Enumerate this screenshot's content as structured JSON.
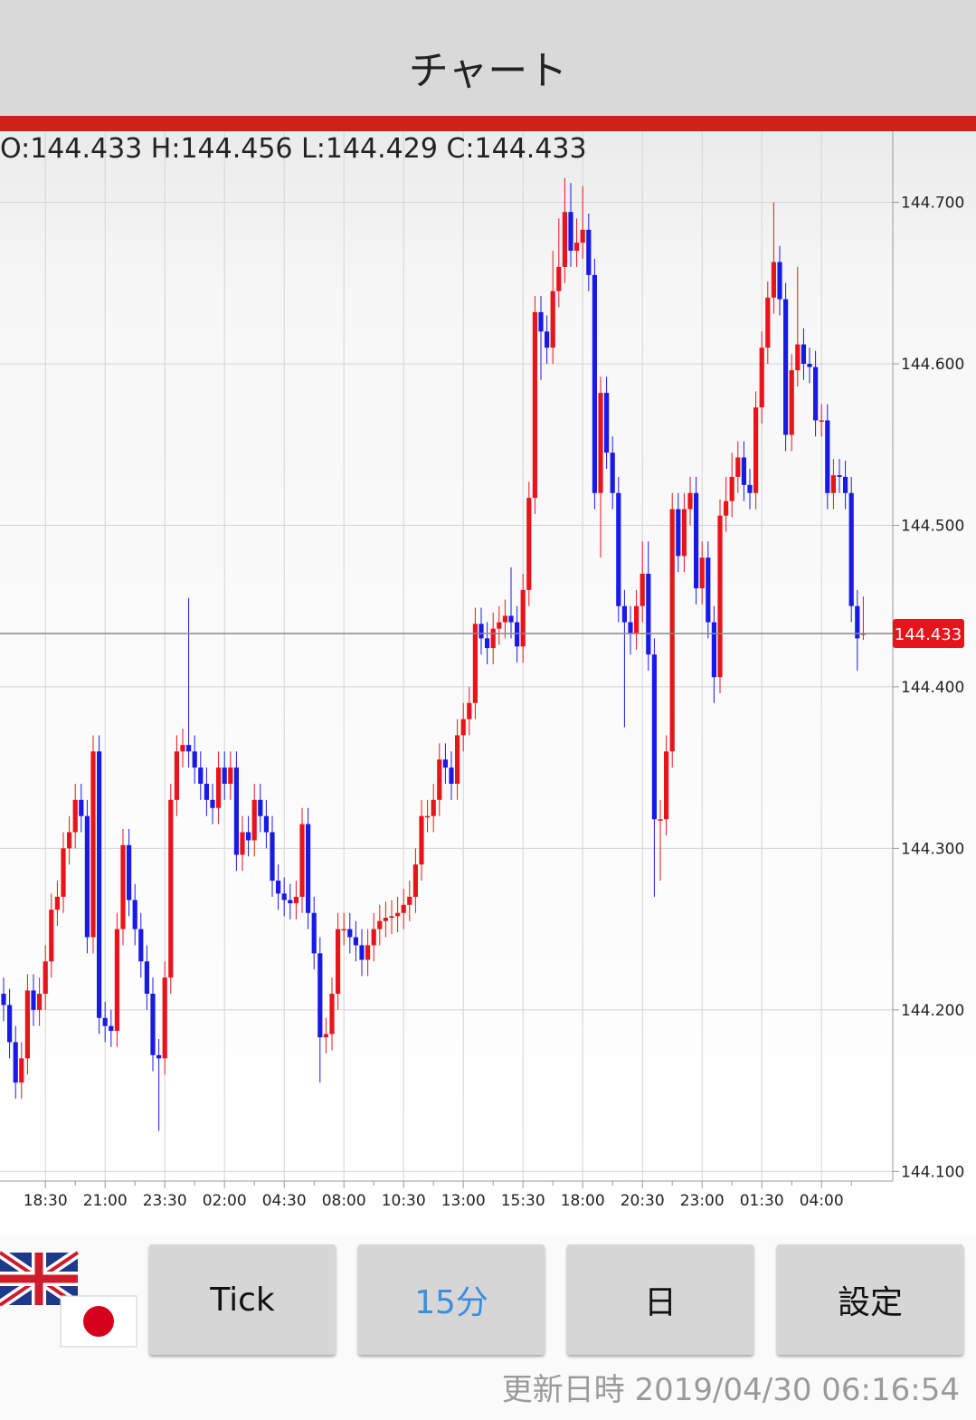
{
  "header": {
    "title": "チャート"
  },
  "chart_data": {
    "type": "candlestick",
    "ohlc_label": "O:144.433 H:144.456 L:144.429 C:144.433",
    "categories": [
      null,
      null,
      null,
      null,
      null,
      null,
      null,
      "18:30",
      null,
      null,
      null,
      null,
      null,
      null,
      null,
      null,
      null,
      "21:00",
      null,
      null,
      null,
      null,
      null,
      null,
      null,
      null,
      null,
      "23:30",
      null,
      null,
      null,
      null,
      null,
      null,
      null,
      null,
      null,
      "02:00",
      null,
      null,
      null,
      null,
      null,
      null,
      null,
      null,
      null,
      "04:30",
      null,
      null,
      null,
      null,
      null,
      null,
      null,
      null,
      null,
      "08:00",
      null,
      null,
      null,
      null,
      null,
      null,
      null,
      null,
      null,
      "10:30",
      null,
      null,
      null,
      null,
      null,
      null,
      null,
      null,
      null,
      "13:00",
      null,
      null,
      null,
      null,
      null,
      null,
      null,
      null,
      null,
      "15:30",
      null,
      null,
      null,
      null,
      null,
      null,
      null,
      null,
      null,
      "18:00",
      null,
      null,
      null,
      null,
      null,
      null,
      null,
      null,
      null,
      "20:30",
      null,
      null,
      null,
      null,
      null,
      null,
      null,
      null,
      null,
      "23:00",
      null,
      null,
      null,
      null,
      null,
      null,
      null,
      null,
      null,
      "01:30",
      null,
      null,
      null,
      null,
      null,
      null,
      null,
      null,
      null,
      "04:00",
      null,
      null,
      null,
      null,
      null,
      null,
      null
    ],
    "open": [
      144.21,
      144.203,
      144.18,
      144.155,
      144.17,
      144.212,
      144.2,
      144.21,
      144.23,
      144.262,
      144.27,
      144.3,
      144.31,
      144.33,
      144.32,
      144.245,
      144.36,
      144.195,
      144.19,
      144.187,
      144.25,
      144.302,
      144.268,
      144.25,
      144.23,
      144.21,
      144.172,
      144.17,
      144.22,
      144.33,
      144.36,
      144.364,
      144.36,
      144.35,
      144.34,
      144.33,
      144.325,
      144.35,
      144.34,
      144.35,
      144.296,
      144.31,
      144.305,
      144.33,
      144.32,
      144.31,
      144.28,
      144.272,
      144.268,
      144.266,
      144.27,
      144.315,
      144.26,
      144.235,
      144.183,
      144.185,
      144.21,
      144.25,
      144.25,
      144.245,
      144.24,
      144.231,
      144.24,
      144.25,
      144.255,
      144.257,
      144.258,
      144.26,
      144.265,
      144.27,
      144.29,
      144.32,
      144.32,
      144.33,
      144.355,
      144.35,
      144.34,
      144.37,
      144.38,
      144.39,
      144.439,
      144.43,
      144.424,
      144.436,
      144.44,
      144.444,
      144.44,
      144.425,
      144.46,
      144.517,
      144.632,
      144.62,
      144.61,
      144.645,
      144.66,
      144.694,
      144.67,
      144.675,
      144.683,
      144.655,
      144.52,
      144.582,
      144.545,
      144.52,
      144.45,
      144.44,
      144.433,
      144.45,
      144.47,
      144.42,
      144.318,
      144.318,
      144.36,
      144.51,
      144.481,
      144.51,
      144.52,
      144.461,
      144.48,
      144.44,
      144.406,
      144.506,
      144.515,
      144.53,
      144.542,
      144.525,
      144.52,
      144.573,
      144.61,
      144.641,
      144.663,
      144.64,
      144.556,
      144.596,
      144.612,
      144.6,
      144.598,
      144.565,
      144.565,
      144.52,
      144.531,
      144.53,
      144.52,
      144.45,
      144.433
    ],
    "high": [
      144.22,
      144.213,
      144.19,
      144.18,
      144.222,
      144.222,
      144.22,
      144.24,
      144.272,
      144.28,
      144.31,
      144.32,
      144.34,
      144.34,
      144.33,
      144.37,
      144.37,
      144.205,
      144.2,
      144.26,
      144.312,
      144.312,
      144.278,
      144.26,
      144.24,
      144.22,
      144.182,
      144.23,
      144.34,
      144.37,
      144.374,
      144.455,
      144.37,
      144.36,
      144.35,
      144.34,
      144.36,
      144.36,
      144.36,
      144.36,
      144.32,
      144.32,
      144.34,
      144.34,
      144.33,
      144.32,
      144.29,
      144.282,
      144.278,
      144.28,
      144.325,
      144.325,
      144.27,
      144.245,
      144.195,
      144.22,
      144.26,
      144.26,
      144.26,
      144.255,
      144.25,
      144.25,
      144.26,
      144.265,
      144.267,
      144.268,
      144.27,
      144.275,
      144.28,
      144.3,
      144.33,
      144.33,
      144.34,
      144.365,
      144.365,
      144.36,
      144.38,
      144.39,
      144.4,
      144.449,
      144.449,
      144.44,
      144.446,
      144.45,
      144.454,
      144.474,
      144.45,
      144.47,
      144.527,
      144.642,
      144.642,
      144.63,
      144.67,
      144.69,
      144.715,
      144.712,
      144.69,
      144.71,
      144.693,
      144.665,
      144.592,
      144.592,
      144.555,
      144.53,
      144.46,
      144.45,
      144.46,
      144.49,
      144.49,
      144.43,
      144.33,
      144.37,
      144.52,
      144.52,
      144.52,
      144.53,
      144.53,
      144.49,
      144.49,
      144.45,
      144.516,
      144.53,
      144.545,
      144.552,
      144.552,
      144.535,
      144.583,
      144.62,
      144.651,
      144.7,
      144.673,
      144.65,
      144.606,
      144.66,
      144.622,
      144.61,
      144.608,
      144.575,
      144.575,
      144.541,
      144.541,
      144.54,
      144.53,
      144.46,
      144.456
    ],
    "low": [
      144.193,
      144.17,
      144.145,
      144.145,
      144.16,
      144.19,
      144.19,
      144.2,
      144.22,
      144.252,
      144.26,
      144.29,
      144.3,
      144.31,
      144.235,
      144.235,
      144.185,
      144.18,
      144.177,
      144.177,
      144.24,
      144.258,
      144.24,
      144.22,
      144.2,
      144.162,
      144.125,
      144.16,
      144.21,
      144.32,
      144.35,
      144.35,
      144.34,
      144.33,
      144.32,
      144.315,
      144.315,
      144.33,
      144.33,
      144.286,
      144.286,
      144.295,
      144.295,
      144.31,
      144.3,
      144.27,
      144.262,
      144.258,
      144.256,
      144.256,
      144.26,
      144.25,
      144.225,
      144.155,
      144.173,
      144.175,
      144.2,
      144.24,
      144.235,
      144.23,
      144.221,
      144.221,
      144.23,
      144.24,
      144.245,
      144.247,
      144.248,
      144.25,
      144.255,
      144.26,
      144.28,
      144.31,
      144.31,
      144.32,
      144.34,
      144.33,
      144.33,
      144.36,
      144.37,
      144.38,
      144.42,
      144.414,
      144.414,
      144.426,
      144.43,
      144.43,
      144.415,
      144.415,
      144.45,
      144.507,
      144.59,
      144.6,
      144.6,
      144.635,
      144.65,
      144.66,
      144.66,
      144.665,
      144.645,
      144.51,
      144.48,
      144.535,
      144.51,
      144.44,
      144.375,
      144.42,
      144.423,
      144.44,
      144.41,
      144.27,
      144.28,
      144.308,
      144.35,
      144.471,
      144.471,
      144.5,
      144.451,
      144.451,
      144.43,
      144.39,
      144.396,
      144.496,
      144.505,
      144.52,
      144.515,
      144.51,
      144.51,
      144.563,
      144.6,
      144.631,
      144.63,
      144.546,
      144.546,
      144.586,
      144.59,
      144.588,
      144.555,
      144.555,
      144.51,
      144.51,
      144.52,
      144.51,
      144.44,
      144.41,
      144.429
    ],
    "close": [
      144.203,
      144.18,
      144.155,
      144.17,
      144.212,
      144.2,
      144.21,
      144.23,
      144.262,
      144.27,
      144.3,
      144.31,
      144.33,
      144.32,
      144.245,
      144.36,
      144.195,
      144.19,
      144.187,
      144.25,
      144.302,
      144.268,
      144.25,
      144.23,
      144.21,
      144.172,
      144.17,
      144.22,
      144.33,
      144.36,
      144.364,
      144.36,
      144.35,
      144.34,
      144.33,
      144.325,
      144.35,
      144.34,
      144.35,
      144.296,
      144.31,
      144.305,
      144.33,
      144.32,
      144.31,
      144.28,
      144.272,
      144.268,
      144.266,
      144.27,
      144.315,
      144.26,
      144.235,
      144.183,
      144.185,
      144.21,
      144.25,
      144.25,
      144.245,
      144.24,
      144.231,
      144.24,
      144.25,
      144.255,
      144.257,
      144.258,
      144.26,
      144.265,
      144.27,
      144.29,
      144.32,
      144.32,
      144.33,
      144.355,
      144.35,
      144.34,
      144.37,
      144.38,
      144.39,
      144.439,
      144.43,
      144.424,
      144.436,
      144.44,
      144.444,
      144.44,
      144.425,
      144.46,
      144.517,
      144.632,
      144.62,
      144.61,
      144.645,
      144.66,
      144.694,
      144.67,
      144.675,
      144.683,
      144.655,
      144.52,
      144.582,
      144.545,
      144.52,
      144.45,
      144.44,
      144.433,
      144.45,
      144.47,
      144.42,
      144.318,
      144.318,
      144.36,
      144.51,
      144.481,
      144.51,
      144.52,
      144.461,
      144.48,
      144.44,
      144.406,
      144.506,
      144.515,
      144.53,
      144.542,
      144.525,
      144.52,
      144.573,
      144.61,
      144.641,
      144.663,
      144.64,
      144.556,
      144.596,
      144.612,
      144.6,
      144.598,
      144.565,
      144.565,
      144.52,
      144.531,
      144.53,
      144.52,
      144.45,
      144.43,
      144.433
    ],
    "up_color": "#e8141b",
    "down_color": "#1a1ae6",
    "ylim": [
      144.094,
      144.744
    ],
    "yticks": [
      {
        "value": 144.1,
        "label": "144.100"
      },
      {
        "value": 144.2,
        "label": "144.200"
      },
      {
        "value": 144.3,
        "label": "144.300"
      },
      {
        "value": 144.4,
        "label": "144.400"
      },
      {
        "value": 144.5,
        "label": "144.500"
      },
      {
        "value": 144.6,
        "label": "144.600"
      },
      {
        "value": 144.7,
        "label": "144.700"
      }
    ],
    "last_price": 144.433,
    "last_price_color": "#e8141b",
    "grid": true
  },
  "buttons": [
    "Tick",
    "15分",
    "日",
    "設定"
  ],
  "footer": {
    "updated": "更新日時 2019/04/30 06:16:54"
  }
}
